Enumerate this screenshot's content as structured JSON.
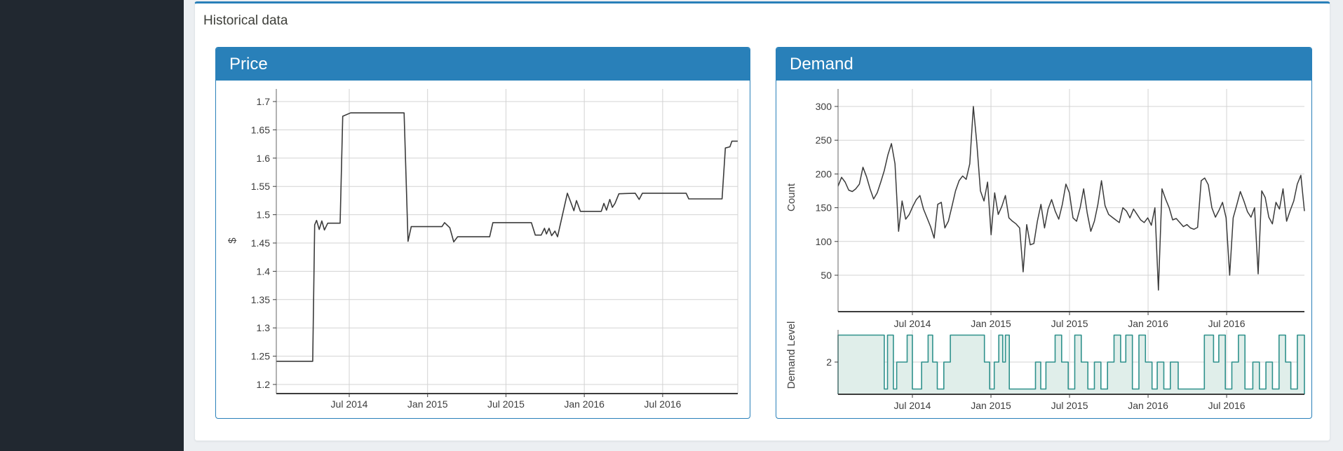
{
  "page": {
    "title": "Historical data"
  },
  "panels": {
    "price": {
      "header": "Price"
    },
    "demand": {
      "header": "Demand"
    }
  },
  "colors": {
    "accent_blue": "#2980b9",
    "sidebar_dark": "#212830",
    "page_bg": "#eceff2",
    "grid": "#d3d3d3",
    "axis_light": "#666666",
    "axis_dark": "#3c3c3c",
    "line": "#3b3b3b",
    "teal_stroke": "#2f918c",
    "teal_fill": "#e0eeea"
  },
  "chart_data": [
    {
      "id": "price",
      "type": "line",
      "title": "Price",
      "ylabel": "$",
      "xlabel": "",
      "ylim": [
        1.2,
        1.7
      ],
      "y_ticks": [
        "1.7",
        "1.65",
        "1.6",
        "1.55",
        "1.5",
        "1.45",
        "1.4",
        "1.35",
        "1.3",
        "1.25",
        "1.2"
      ],
      "y_tick_values": [
        1.7,
        1.65,
        1.6,
        1.55,
        1.5,
        1.45,
        1.4,
        1.35,
        1.3,
        1.25,
        1.2
      ],
      "x_tick_labels": [
        "Jul 2014",
        "Jan 2015",
        "Jul 2015",
        "Jan 2016",
        "Jul 2016"
      ],
      "x_tick_months": [
        6,
        12,
        18,
        24,
        30
      ],
      "x_range_months": [
        0.41,
        35.75
      ],
      "grid": true,
      "legend": "none",
      "series": [
        {
          "name": "price",
          "x": [
            0.41,
            3.2,
            3.35,
            3.5,
            3.7,
            3.9,
            4.1,
            4.35,
            5.3,
            5.5,
            6.1,
            10.2,
            10.5,
            10.75,
            13.1,
            13.3,
            13.7,
            14.0,
            14.3,
            16.75,
            17.0,
            19.95,
            20.25,
            20.7,
            20.95,
            21.1,
            21.3,
            21.5,
            21.75,
            21.95,
            22.7,
            22.95,
            23.2,
            23.4,
            23.7,
            25.3,
            25.5,
            25.7,
            25.95,
            26.15,
            26.35,
            26.65,
            27.9,
            28.2,
            28.45,
            31.8,
            32.0,
            34.55,
            34.8,
            35.15,
            35.3,
            35.75
          ],
          "y": [
            1.241,
            1.241,
            1.482,
            1.49,
            1.474,
            1.489,
            1.473,
            1.485,
            1.485,
            1.674,
            1.68,
            1.68,
            1.453,
            1.479,
            1.479,
            1.486,
            1.477,
            1.452,
            1.461,
            1.461,
            1.486,
            1.486,
            1.464,
            1.464,
            1.476,
            1.466,
            1.476,
            1.463,
            1.471,
            1.461,
            1.538,
            1.523,
            1.507,
            1.525,
            1.506,
            1.506,
            1.52,
            1.508,
            1.527,
            1.513,
            1.52,
            1.537,
            1.538,
            1.527,
            1.538,
            1.538,
            1.528,
            1.528,
            1.618,
            1.62,
            1.63,
            1.63
          ]
        }
      ]
    },
    {
      "id": "demand-count",
      "type": "line",
      "title": "Demand",
      "ylabel": "Count",
      "xlabel": "",
      "ylim": [
        0,
        320
      ],
      "y_ticks": [
        "300",
        "250",
        "200",
        "150",
        "100",
        "50"
      ],
      "y_tick_values": [
        300,
        250,
        200,
        150,
        100,
        50
      ],
      "x_tick_labels": [
        "Jul 2014",
        "Jan 2015",
        "Jul 2015",
        "Jan 2016",
        "Jul 2016"
      ],
      "x_tick_months": [
        6,
        12,
        18,
        24,
        30
      ],
      "x_range_months": [
        0.32,
        35.94
      ],
      "grid": true,
      "legend": "none",
      "values_evenly_spaced": [
        182,
        195,
        188,
        176,
        174,
        178,
        185,
        210,
        196,
        178,
        163,
        172,
        188,
        205,
        228,
        245,
        215,
        115,
        160,
        133,
        140,
        152,
        162,
        168,
        148,
        135,
        122,
        105,
        155,
        158,
        120,
        130,
        152,
        175,
        190,
        197,
        192,
        215,
        300,
        245,
        175,
        160,
        188,
        110,
        172,
        140,
        152,
        168,
        135,
        130,
        126,
        120,
        55,
        125,
        95,
        97,
        130,
        155,
        120,
        148,
        162,
        145,
        133,
        155,
        185,
        172,
        135,
        130,
        150,
        178,
        142,
        115,
        130,
        155,
        190,
        153,
        140,
        136,
        132,
        128,
        150,
        145,
        135,
        148,
        140,
        132,
        128,
        135,
        124,
        150,
        28,
        178,
        163,
        150,
        132,
        134,
        128,
        122,
        125,
        120,
        118,
        121,
        190,
        194,
        184,
        150,
        136,
        146,
        158,
        135,
        50,
        135,
        154,
        174,
        160,
        144,
        136,
        150,
        52,
        175,
        165,
        136,
        126,
        158,
        148,
        178,
        130,
        146,
        160,
        185,
        198,
        145
      ]
    },
    {
      "id": "demand-level",
      "type": "step-area",
      "title": "Demand Level",
      "ylabel": "Demand Level",
      "xlabel": "",
      "ylim": [
        1,
        3
      ],
      "y_ticks": [
        "2"
      ],
      "y_tick_values": [
        2
      ],
      "x_tick_labels": [
        "Jul 2014",
        "Jan 2015",
        "Jul 2015",
        "Jan 2016",
        "Jul 2016"
      ],
      "x_tick_months": [
        6,
        12,
        18,
        24,
        30
      ],
      "x_range_months": [
        0.32,
        35.94
      ],
      "grid": true,
      "legend": "none",
      "steps": [
        [
          0.32,
          3
        ],
        [
          3.85,
          1
        ],
        [
          4.1,
          3
        ],
        [
          4.55,
          1
        ],
        [
          4.8,
          2
        ],
        [
          5.6,
          3
        ],
        [
          6.0,
          1
        ],
        [
          6.7,
          2
        ],
        [
          7.2,
          3
        ],
        [
          7.55,
          2
        ],
        [
          7.9,
          1
        ],
        [
          8.4,
          2
        ],
        [
          8.9,
          3
        ],
        [
          11.5,
          2
        ],
        [
          11.9,
          1
        ],
        [
          12.25,
          2
        ],
        [
          12.6,
          3
        ],
        [
          12.9,
          2
        ],
        [
          13.1,
          3
        ],
        [
          13.4,
          1
        ],
        [
          15.4,
          2
        ],
        [
          15.8,
          1
        ],
        [
          16.2,
          2
        ],
        [
          16.9,
          3
        ],
        [
          17.4,
          2
        ],
        [
          17.9,
          1
        ],
        [
          18.4,
          3
        ],
        [
          18.9,
          2
        ],
        [
          19.4,
          1
        ],
        [
          19.9,
          2
        ],
        [
          20.4,
          1
        ],
        [
          20.9,
          2
        ],
        [
          21.4,
          3
        ],
        [
          21.9,
          2
        ],
        [
          22.3,
          3
        ],
        [
          22.8,
          1
        ],
        [
          23.3,
          3
        ],
        [
          23.8,
          2
        ],
        [
          24.3,
          1
        ],
        [
          24.7,
          2
        ],
        [
          25.2,
          1
        ],
        [
          25.7,
          2
        ],
        [
          26.3,
          1
        ],
        [
          28.3,
          3
        ],
        [
          29.0,
          2
        ],
        [
          29.4,
          3
        ],
        [
          29.9,
          1
        ],
        [
          30.4,
          2
        ],
        [
          30.9,
          3
        ],
        [
          31.4,
          1
        ],
        [
          32.0,
          2
        ],
        [
          32.5,
          1
        ],
        [
          33.0,
          2
        ],
        [
          33.5,
          1
        ],
        [
          34.0,
          3
        ],
        [
          34.5,
          2
        ],
        [
          34.9,
          1
        ],
        [
          35.4,
          3
        ]
      ]
    }
  ]
}
